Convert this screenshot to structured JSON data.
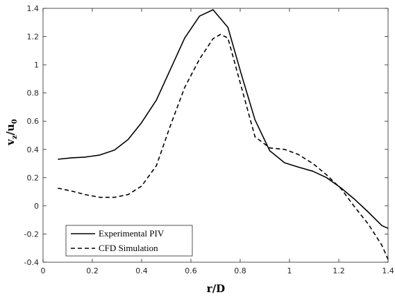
{
  "chart_data": {
    "type": "line",
    "xlabel": "r/D",
    "ylabel": "v_z/u_0",
    "ylabel_parts": {
      "v": "v",
      "vsub": "z",
      "slash": "/",
      "u": "u",
      "usub": "0"
    },
    "xlim": [
      0,
      1.4
    ],
    "ylim": [
      -0.4,
      1.4
    ],
    "xticks": [
      0,
      0.2,
      0.4,
      0.6,
      0.8,
      1,
      1.2,
      1.4
    ],
    "xtick_labels": [
      "0",
      "0.2",
      "0.4",
      "0.6",
      "0.8",
      "1",
      "1.2",
      "1.4"
    ],
    "yticks": [
      -0.4,
      -0.2,
      0,
      0.2,
      0.4,
      0.6,
      0.8,
      1,
      1.2,
      1.4
    ],
    "ytick_labels": [
      "-0.4",
      "-0.2",
      "0",
      "0.2",
      "0.4",
      "0.6",
      "0.8",
      "1",
      "1.2",
      "1.4"
    ],
    "grid": false,
    "legend_position": "bottom-left",
    "series": [
      {
        "name": "Experimental PIV",
        "style": "solid",
        "color": "#000000",
        "points": [
          [
            0.06,
            0.33
          ],
          [
            0.115,
            0.34
          ],
          [
            0.17,
            0.345
          ],
          [
            0.23,
            0.36
          ],
          [
            0.29,
            0.395
          ],
          [
            0.345,
            0.47
          ],
          [
            0.4,
            0.59
          ],
          [
            0.46,
            0.75
          ],
          [
            0.515,
            0.96
          ],
          [
            0.575,
            1.19
          ],
          [
            0.635,
            1.345
          ],
          [
            0.69,
            1.39
          ],
          [
            0.75,
            1.265
          ],
          [
            0.805,
            0.93
          ],
          [
            0.86,
            0.61
          ],
          [
            0.92,
            0.39
          ],
          [
            0.98,
            0.305
          ],
          [
            1.035,
            0.275
          ],
          [
            1.095,
            0.245
          ],
          [
            1.15,
            0.2
          ],
          [
            1.21,
            0.125
          ],
          [
            1.265,
            0.045
          ],
          [
            1.32,
            -0.045
          ],
          [
            1.375,
            -0.14
          ],
          [
            1.4,
            -0.16
          ]
        ]
      },
      {
        "name": "CFD Simulation",
        "style": "dashed",
        "color": "#000000",
        "points": [
          [
            0.06,
            0.125
          ],
          [
            0.115,
            0.105
          ],
          [
            0.17,
            0.08
          ],
          [
            0.23,
            0.06
          ],
          [
            0.29,
            0.06
          ],
          [
            0.345,
            0.08
          ],
          [
            0.4,
            0.14
          ],
          [
            0.46,
            0.285
          ],
          [
            0.515,
            0.56
          ],
          [
            0.575,
            0.84
          ],
          [
            0.635,
            1.04
          ],
          [
            0.69,
            1.185
          ],
          [
            0.72,
            1.215
          ],
          [
            0.75,
            1.19
          ],
          [
            0.805,
            0.84
          ],
          [
            0.86,
            0.49
          ],
          [
            0.92,
            0.41
          ],
          [
            0.98,
            0.4
          ],
          [
            1.035,
            0.365
          ],
          [
            1.095,
            0.3
          ],
          [
            1.15,
            0.22
          ],
          [
            1.21,
            0.12
          ],
          [
            1.265,
            -0.01
          ],
          [
            1.32,
            -0.13
          ],
          [
            1.375,
            -0.28
          ],
          [
            1.4,
            -0.38
          ]
        ]
      }
    ]
  }
}
